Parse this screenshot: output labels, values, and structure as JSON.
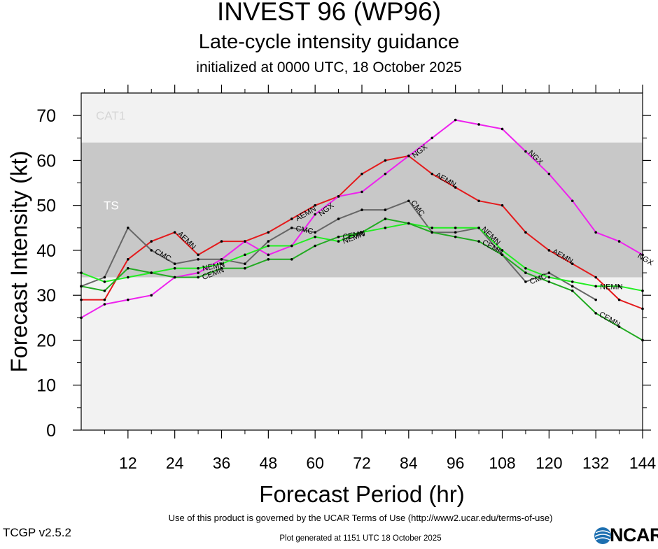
{
  "header": {
    "title": "INVEST 96 (WP96)",
    "subtitle": "Late-cycle intensity guidance",
    "init_line": "initialized at 0000 UTC, 18 October 2025"
  },
  "footer": {
    "terms": "Use of this product is governed by the UCAR Terms of Use (http://www2.ucar.edu/terms-of-use)",
    "version": "TCGP v2.5.2",
    "generated": "Plot generated at 1151 UTC   18 October 2025",
    "logo_text": "NCAR"
  },
  "chart_data": {
    "type": "line",
    "xlabel": "Forecast Period (hr)",
    "ylabel": "Forecast Intensity (kt)",
    "xlim": [
      0,
      144
    ],
    "ylim": [
      0,
      75
    ],
    "xticks": [
      12,
      24,
      36,
      48,
      60,
      72,
      84,
      96,
      108,
      120,
      132,
      144
    ],
    "yticks": [
      0,
      10,
      20,
      30,
      40,
      50,
      60,
      70
    ],
    "bands": [
      {
        "label": "TS",
        "from": 34,
        "to": 64,
        "color": "#c8c8c8"
      },
      {
        "label": "CAT1",
        "from": 64,
        "to": 75,
        "color": "#f2f2f2"
      }
    ],
    "below_band_color": "#f2f2f2",
    "series": [
      {
        "name": "AEMN",
        "color": "#e41a1c",
        "x": [
          0,
          6,
          12,
          18,
          24,
          30,
          36,
          42,
          48,
          54,
          60,
          66,
          72,
          78,
          84,
          90,
          96,
          102,
          108,
          114,
          120,
          126,
          132,
          138,
          144
        ],
        "y": [
          29,
          29,
          38,
          42,
          44,
          39,
          42,
          42,
          44,
          47,
          50,
          52,
          57,
          60,
          61,
          57,
          54,
          51,
          50,
          44,
          40,
          37,
          34,
          29,
          27
        ],
        "label_x": [
          24,
          54,
          90,
          120
        ]
      },
      {
        "name": "NGX",
        "color": "#ee22ee",
        "x": [
          0,
          6,
          12,
          18,
          24,
          30,
          36,
          42,
          48,
          54,
          60,
          66,
          72,
          78,
          84,
          90,
          96,
          102,
          108,
          114,
          120,
          126,
          132,
          138,
          144
        ],
        "y": [
          25,
          28,
          29,
          30,
          34,
          35,
          38,
          42,
          39,
          41,
          48,
          52,
          53,
          57,
          61,
          65,
          69,
          68,
          67,
          62,
          57,
          51,
          44,
          42,
          39
        ],
        "label_x": [
          60,
          84,
          114,
          144
        ]
      },
      {
        "name": "CMC",
        "color": "#666666",
        "x": [
          0,
          6,
          12,
          18,
          24,
          30,
          36,
          42,
          48,
          54,
          60,
          66,
          72,
          78,
          84,
          90,
          96,
          102,
          108,
          114,
          120,
          126,
          132
        ],
        "y": [
          32,
          34,
          45,
          40,
          37,
          38,
          38,
          37,
          42,
          45,
          44,
          47,
          49,
          49,
          51,
          44,
          44,
          45,
          39,
          33,
          35,
          32,
          29
        ],
        "label_x": [
          18,
          54,
          84,
          114
        ]
      },
      {
        "name": "NEMN",
        "color": "#22ee22",
        "x": [
          0,
          6,
          12,
          18,
          24,
          30,
          36,
          42,
          48,
          54,
          60,
          66,
          72,
          78,
          84,
          90,
          96,
          102,
          108,
          114,
          120,
          126,
          132,
          138,
          144
        ],
        "y": [
          35,
          33,
          34,
          35,
          36,
          36,
          37,
          39,
          41,
          41,
          43,
          42,
          44,
          45,
          46,
          45,
          45,
          45,
          40,
          36,
          34,
          33,
          32,
          32,
          31
        ],
        "label_x": [
          30,
          66,
          102,
          132
        ]
      },
      {
        "name": "CEMN",
        "color": "#22aa22",
        "x": [
          0,
          6,
          12,
          18,
          24,
          30,
          36,
          42,
          48,
          54,
          60,
          66,
          72,
          78,
          84,
          90,
          96,
          102,
          108,
          114,
          120,
          126,
          132,
          138,
          144
        ],
        "y": [
          32,
          31,
          36,
          35,
          34,
          34,
          36,
          36,
          38,
          38,
          41,
          43,
          44,
          47,
          46,
          44,
          43,
          42,
          39,
          35,
          33,
          31,
          26,
          23,
          20
        ],
        "label_x": [
          30,
          66,
          102,
          132
        ]
      }
    ]
  }
}
